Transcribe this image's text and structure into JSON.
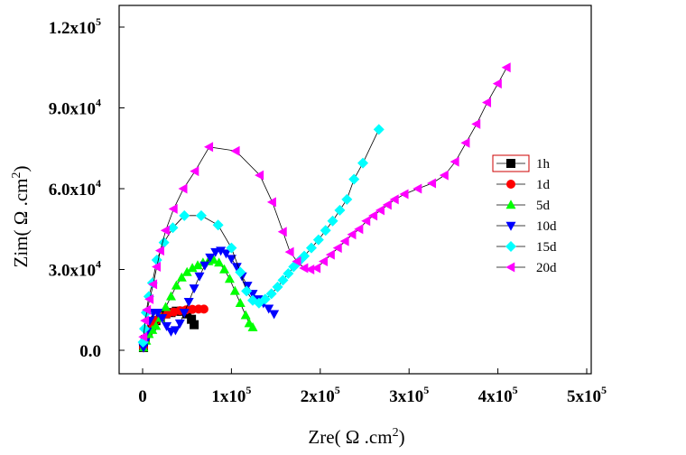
{
  "chart_data": {
    "type": "scatter",
    "xlabel": "Zre( Ω .cm2)",
    "ylabel": "Zim( Ω .cm2)",
    "xlim": [
      0,
      500000
    ],
    "ylim": [
      -8000,
      120000
    ],
    "grid": false,
    "legend_position": "right",
    "x_ticks": [
      {
        "value": 0,
        "label": "0"
      },
      {
        "value": 100000,
        "label": "1x10",
        "exp": "5"
      },
      {
        "value": 200000,
        "label": "2x10",
        "exp": "5"
      },
      {
        "value": 300000,
        "label": "3x10",
        "exp": "5"
      },
      {
        "value": 400000,
        "label": "4x10",
        "exp": "5"
      },
      {
        "value": 500000,
        "label": "5x10",
        "exp": "5"
      }
    ],
    "y_ticks": [
      {
        "value": 0,
        "label": "0.0",
        "exp": ""
      },
      {
        "value": 30000,
        "label": "3.0x10",
        "exp": "4"
      },
      {
        "value": 60000,
        "label": "6.0x10",
        "exp": "4"
      },
      {
        "value": 90000,
        "label": "9.0x10",
        "exp": "4"
      },
      {
        "value": 120000,
        "label": "1.2x10",
        "exp": "5"
      }
    ],
    "series": [
      {
        "name": "1h",
        "color": "#000000",
        "marker": "square",
        "points": [
          [
            1000,
            1000
          ],
          [
            3000,
            4000
          ],
          [
            6000,
            7000
          ],
          [
            10000,
            9000
          ],
          [
            15000,
            11000
          ],
          [
            20000,
            12500
          ],
          [
            26000,
            13500
          ],
          [
            32000,
            14000
          ],
          [
            38000,
            14500
          ],
          [
            44000,
            14500
          ],
          [
            50000,
            13500
          ],
          [
            55000,
            11500
          ],
          [
            58000,
            9500
          ]
        ]
      },
      {
        "name": "1d",
        "color": "#ff0000",
        "marker": "circle",
        "points": [
          [
            1000,
            1000
          ],
          [
            3000,
            3500
          ],
          [
            6000,
            6500
          ],
          [
            10000,
            9000
          ],
          [
            15000,
            11000
          ],
          [
            21000,
            12500
          ],
          [
            28000,
            13500
          ],
          [
            35000,
            14200
          ],
          [
            42000,
            14700
          ],
          [
            49000,
            15000
          ],
          [
            56000,
            15200
          ],
          [
            63000,
            15300
          ],
          [
            69000,
            15300
          ]
        ]
      },
      {
        "name": "5d",
        "color": "#00ff00",
        "marker": "triangle-up",
        "points": [
          [
            1000,
            1000
          ],
          [
            4000,
            3500
          ],
          [
            7000,
            6000
          ],
          [
            11000,
            7500
          ],
          [
            15000,
            9000
          ],
          [
            20000,
            12000
          ],
          [
            26000,
            16000
          ],
          [
            32000,
            20000
          ],
          [
            38000,
            24000
          ],
          [
            44000,
            27000
          ],
          [
            50000,
            29000
          ],
          [
            56000,
            30500
          ],
          [
            62000,
            31500
          ],
          [
            68000,
            32500
          ],
          [
            74000,
            33000
          ],
          [
            80000,
            33500
          ],
          [
            86000,
            32500
          ],
          [
            92000,
            30000
          ],
          [
            98000,
            26500
          ],
          [
            104000,
            22000
          ],
          [
            110000,
            17500
          ],
          [
            116000,
            13000
          ],
          [
            120000,
            10000
          ],
          [
            124000,
            8500
          ]
        ]
      },
      {
        "name": "10d",
        "color": "#0000ff",
        "marker": "triangle-down",
        "points": [
          [
            1000,
            1000
          ],
          [
            3000,
            3000
          ],
          [
            5000,
            7000
          ],
          [
            8000,
            11000
          ],
          [
            12000,
            14000
          ],
          [
            17000,
            14000
          ],
          [
            22000,
            12000
          ],
          [
            27000,
            9000
          ],
          [
            32000,
            7000
          ],
          [
            37000,
            7500
          ],
          [
            42000,
            10000
          ],
          [
            47000,
            14000
          ],
          [
            52000,
            18000
          ],
          [
            58000,
            23000
          ],
          [
            64000,
            27500
          ],
          [
            70000,
            31500
          ],
          [
            76000,
            34500
          ],
          [
            82000,
            36500
          ],
          [
            88000,
            37000
          ],
          [
            94000,
            36000
          ],
          [
            100000,
            34000
          ],
          [
            106000,
            31000
          ],
          [
            112000,
            27500
          ],
          [
            118000,
            24000
          ],
          [
            124000,
            21000
          ],
          [
            130000,
            19000
          ],
          [
            136000,
            17500
          ],
          [
            142000,
            15500
          ],
          [
            148000,
            13500
          ]
        ]
      },
      {
        "name": "15d",
        "color": "#00ffff",
        "marker": "diamond",
        "points": [
          [
            500,
            3000
          ],
          [
            2000,
            8000
          ],
          [
            4000,
            14000
          ],
          [
            7000,
            20000
          ],
          [
            11000,
            25000
          ],
          [
            16000,
            33500
          ],
          [
            24000,
            40000
          ],
          [
            34000,
            45500
          ],
          [
            47000,
            50000
          ],
          [
            66000,
            50000
          ],
          [
            85000,
            46500
          ],
          [
            100000,
            38000
          ],
          [
            110000,
            29000
          ],
          [
            117000,
            22000
          ],
          [
            124000,
            18500
          ],
          [
            131000,
            17500
          ],
          [
            138000,
            19000
          ],
          [
            145000,
            21000
          ],
          [
            152000,
            23500
          ],
          [
            158000,
            26000
          ],
          [
            164000,
            28500
          ],
          [
            170000,
            31000
          ],
          [
            176000,
            33000
          ],
          [
            182000,
            35000
          ],
          [
            190000,
            38000
          ],
          [
            198000,
            41000
          ],
          [
            206000,
            44500
          ],
          [
            214000,
            48000
          ],
          [
            222000,
            52000
          ],
          [
            230000,
            56000
          ],
          [
            238000,
            63500
          ],
          [
            248000,
            69500
          ],
          [
            266000,
            82000
          ]
        ]
      },
      {
        "name": "20d",
        "color": "#ff00ff",
        "marker": "triangle-left",
        "points": [
          [
            1000,
            5000
          ],
          [
            3000,
            11000
          ],
          [
            5000,
            15000
          ],
          [
            8000,
            19000
          ],
          [
            12000,
            24500
          ],
          [
            16000,
            31000
          ],
          [
            20000,
            37000
          ],
          [
            26000,
            44500
          ],
          [
            35000,
            52500
          ],
          [
            46000,
            60000
          ],
          [
            59000,
            66500
          ],
          [
            75000,
            75500
          ],
          [
            105000,
            74000
          ],
          [
            132000,
            65000
          ],
          [
            146000,
            55000
          ],
          [
            158000,
            44000
          ],
          [
            166000,
            36500
          ],
          [
            174000,
            33000
          ],
          [
            182000,
            30500
          ],
          [
            189000,
            30000
          ],
          [
            196000,
            30500
          ],
          [
            204000,
            33000
          ],
          [
            212000,
            35500
          ],
          [
            220000,
            38000
          ],
          [
            228000,
            40500
          ],
          [
            236000,
            43000
          ],
          [
            244000,
            45000
          ],
          [
            252000,
            48000
          ],
          [
            260000,
            50000
          ],
          [
            268000,
            52000
          ],
          [
            276000,
            54000
          ],
          [
            284000,
            56000
          ],
          [
            295000,
            58000
          ],
          [
            310000,
            60000
          ],
          [
            326000,
            62000
          ],
          [
            340000,
            65000
          ],
          [
            352000,
            70000
          ],
          [
            364000,
            77000
          ],
          [
            376000,
            84000
          ],
          [
            388000,
            92000
          ],
          [
            400000,
            99000
          ],
          [
            410000,
            105000
          ]
        ]
      }
    ]
  }
}
